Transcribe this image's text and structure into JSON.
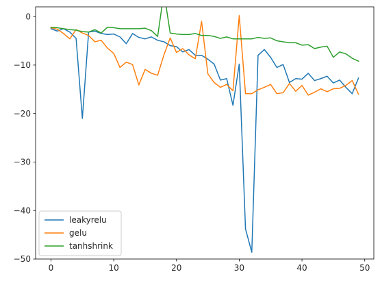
{
  "chart_data": {
    "type": "line",
    "title": "",
    "xlabel": "",
    "ylabel": "",
    "xlim": [
      -2.45,
      51.45
    ],
    "ylim": [
      -50,
      2
    ],
    "xticks": [
      0,
      10,
      20,
      30,
      40,
      50
    ],
    "yticks": [
      0,
      -10,
      -20,
      -30,
      -40,
      -50
    ],
    "xtick_labels": [
      "0",
      "10",
      "20",
      "30",
      "40",
      "50"
    ],
    "ytick_labels": [
      "0",
      "−10",
      "−20",
      "−30",
      "−40",
      "−50"
    ],
    "grid": false,
    "legend_position": "lower-left",
    "x": [
      0,
      1,
      2,
      3,
      4,
      5,
      6,
      7,
      8,
      9,
      10,
      11,
      12,
      13,
      14,
      15,
      16,
      17,
      18,
      19,
      20,
      21,
      22,
      23,
      24,
      25,
      26,
      27,
      28,
      29,
      30,
      31,
      32,
      33,
      34,
      35,
      36,
      37,
      38,
      39,
      40,
      41,
      42,
      43,
      44,
      45,
      46,
      47,
      48,
      49
    ],
    "series": [
      {
        "name": "leakyrelu",
        "color": "#1f77b4",
        "values": [
          -2.5,
          -3.0,
          -2.5,
          -3.2,
          -4.5,
          -21.0,
          -3.2,
          -3.0,
          -3.5,
          -3.7,
          -3.6,
          -4.2,
          -5.6,
          -3.5,
          -4.3,
          -4.6,
          -4.2,
          -4.9,
          -5.2,
          -6.0,
          -6.2,
          -7.3,
          -6.8,
          -8.0,
          -8.0,
          -8.8,
          -9.8,
          -13.1,
          -12.8,
          -18.3,
          -9.8,
          -43.8,
          -48.6,
          -8.0,
          -6.8,
          -8.4,
          -10.5,
          -9.9,
          -13.6,
          -12.8,
          -12.9,
          -11.7,
          -13.2,
          -12.8,
          -12.3,
          -13.7,
          -13.1,
          -14.6,
          -15.9,
          -12.7
        ]
      },
      {
        "name": "gelu",
        "color": "#ff7f0e",
        "values": [
          -2.3,
          -2.6,
          -3.5,
          -4.6,
          -2.7,
          -3.4,
          -3.9,
          -5.2,
          -4.9,
          -6.5,
          -7.6,
          -10.5,
          -9.4,
          -9.9,
          -14.1,
          -10.9,
          -11.7,
          -12.1,
          -7.9,
          -4.4,
          -7.4,
          -6.6,
          -7.9,
          -8.7,
          -1.0,
          -11.8,
          -13.6,
          -14.6,
          -14.0,
          -15.3,
          0.2,
          -15.9,
          -15.9,
          -15.1,
          -14.6,
          -14.0,
          -15.9,
          -15.7,
          -13.8,
          -15.4,
          -14.2,
          -16.2,
          -15.6,
          -14.9,
          -15.5,
          -14.9,
          -14.8,
          -14.2,
          -13.2,
          -16.0
        ]
      },
      {
        "name": "tanhshrink",
        "color": "#2ca02c",
        "values": [
          -2.2,
          -2.3,
          -2.5,
          -2.7,
          -2.8,
          -3.1,
          -3.2,
          -2.7,
          -3.4,
          -2.2,
          -2.3,
          -2.5,
          -2.5,
          -2.5,
          -2.5,
          -2.4,
          -2.9,
          -4.1,
          5.0,
          -3.4,
          -3.6,
          -3.7,
          -3.7,
          -3.5,
          -3.9,
          -3.9,
          -4.1,
          -4.5,
          -4.2,
          -4.6,
          -4.6,
          -4.6,
          -4.6,
          -4.3,
          -4.5,
          -4.4,
          -5.0,
          -5.2,
          -5.4,
          -5.4,
          -5.9,
          -5.8,
          -6.6,
          -6.3,
          -6.1,
          -8.4,
          -7.3,
          -7.7,
          -8.6,
          -9.2
        ]
      }
    ]
  }
}
